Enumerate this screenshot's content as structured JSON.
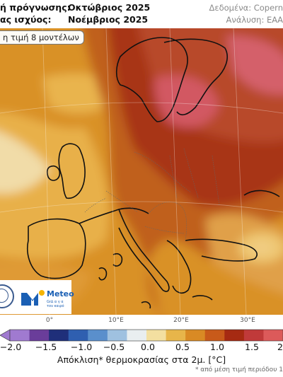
{
  "header": {
    "forecast_label": "ή πρόγνωσης:",
    "forecast_value": "Οκτώβριος 2025",
    "valid_label": "ας ισχύος:",
    "valid_value": "Νοέμβριος 2025",
    "data_source": "Δεδομένα: Copern",
    "analysis": "Ανάλυση: ΕΑΑ"
  },
  "badge": "η τιμή 8 μοντέλων",
  "logo": {
    "name": "Meteo",
    "tagline_1": "Gr∆ α γ α",
    "tagline_2": "τον καιρό"
  },
  "longitude_labels": [
    "0°",
    "10°E",
    "20°E",
    "30°E"
  ],
  "colorbar": {
    "ticks": [
      "−2.0",
      "−1.5",
      "−1.0",
      "−0.5",
      "0.0",
      "0.5",
      "1.0",
      "1.5",
      "2"
    ],
    "colors": [
      "#a07ad0",
      "#6a3d9a",
      "#1f2f7a",
      "#2f5fb0",
      "#5a8fcc",
      "#9fc1e0",
      "#e9eef0",
      "#f3dfa0",
      "#e7b54a",
      "#d98a24",
      "#c85a1a",
      "#a62a12",
      "#c03a3a",
      "#dc5a5a"
    ],
    "title": "Απόκλιση* θερμοκρασίας στα 2μ. [°C]"
  },
  "footnote": "* από μέση τιμή περιόδου 1"
}
